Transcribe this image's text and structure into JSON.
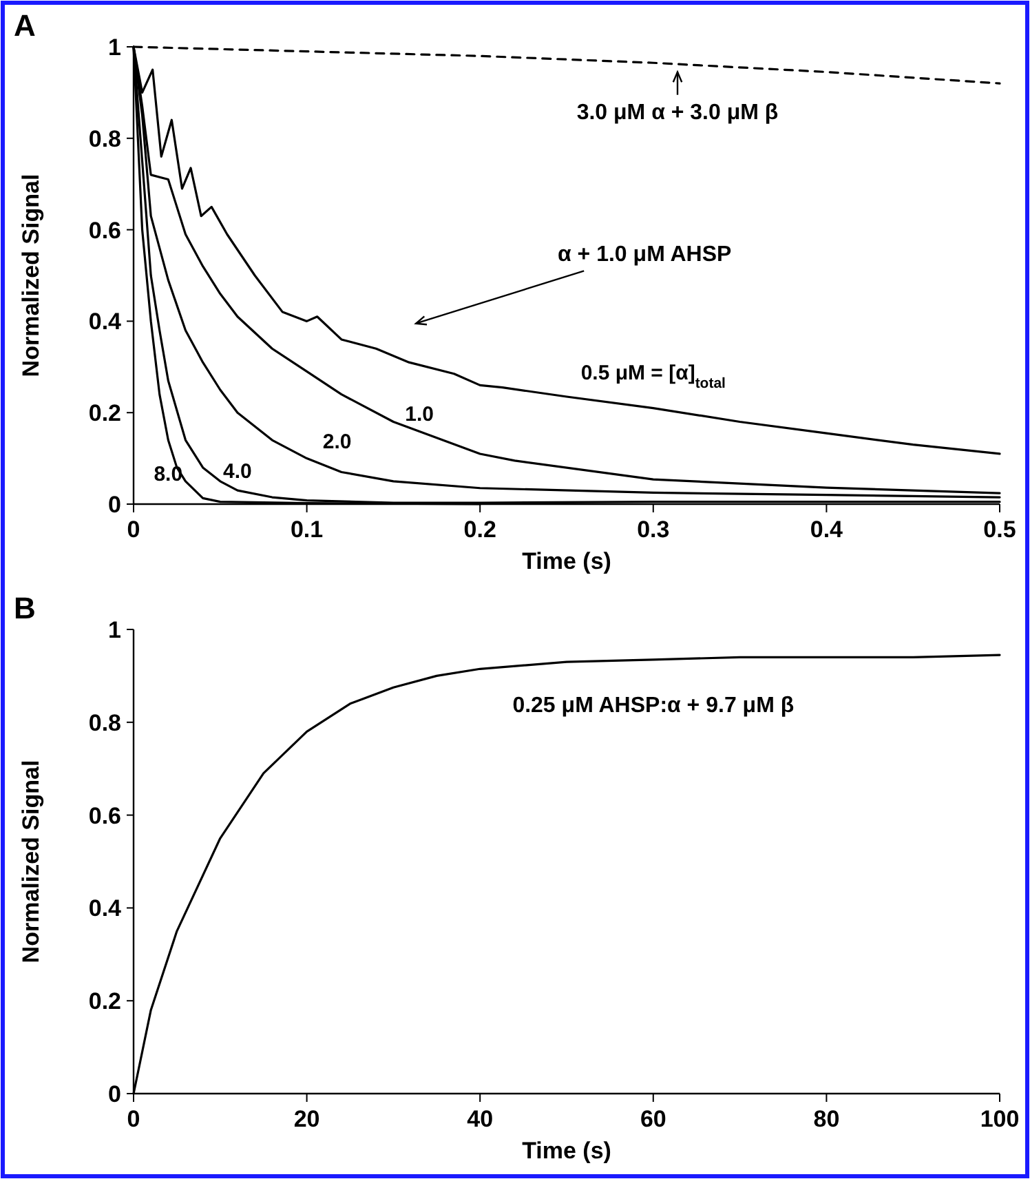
{
  "chart_data": [
    {
      "type": "line",
      "title": "A",
      "xlabel": "Time (s)",
      "ylabel": "Normalized Signal",
      "xlim": [
        0,
        0.5
      ],
      "ylim": [
        0,
        1
      ],
      "xticks": [
        0,
        0.1,
        0.2,
        0.3,
        0.4,
        0.5
      ],
      "yticks": [
        0,
        0.2,
        0.4,
        0.6,
        0.8,
        1
      ],
      "grid": false,
      "marker": "none",
      "series": [
        {
          "color": "#000000",
          "line_style": "dashed",
          "x": [
            0,
            0.1,
            0.2,
            0.3,
            0.4,
            0.5
          ],
          "values": [
            1,
            0.99,
            0.98,
            0.965,
            0.945,
            0.92
          ]
        },
        {
          "name": "0.5 μM = [α]$_{total}$",
          "color": "#000000",
          "line_style": "solid",
          "x": [
            0,
            0.005,
            0.011,
            0.016,
            0.022,
            0.028,
            0.033,
            0.039,
            0.045,
            0.054,
            0.07,
            0.086,
            0.1,
            0.106,
            0.12,
            0.14,
            0.159,
            0.185,
            0.2,
            0.213,
            0.25,
            0.3,
            0.35,
            0.4,
            0.45,
            0.5
          ],
          "values": [
            1,
            0.9,
            0.95,
            0.76,
            0.84,
            0.69,
            0.735,
            0.63,
            0.65,
            0.59,
            0.5,
            0.42,
            0.4,
            0.41,
            0.36,
            0.34,
            0.31,
            0.285,
            0.26,
            0.255,
            0.235,
            0.21,
            0.18,
            0.155,
            0.13,
            0.11
          ]
        },
        {
          "name": "1.0",
          "color": "#000000",
          "line_style": "solid",
          "x": [
            0,
            0.005,
            0.01,
            0.02,
            0.03,
            0.04,
            0.05,
            0.06,
            0.08,
            0.1,
            0.12,
            0.15,
            0.2,
            0.22,
            0.3,
            0.4,
            0.5
          ],
          "values": [
            1,
            0.87,
            0.72,
            0.71,
            0.59,
            0.52,
            0.46,
            0.41,
            0.34,
            0.29,
            0.24,
            0.18,
            0.11,
            0.095,
            0.054,
            0.036,
            0.024
          ]
        },
        {
          "name": "2.0",
          "color": "#000000",
          "line_style": "solid",
          "x": [
            0,
            0.005,
            0.01,
            0.02,
            0.03,
            0.04,
            0.05,
            0.06,
            0.08,
            0.1,
            0.12,
            0.15,
            0.2,
            0.3,
            0.4,
            0.5
          ],
          "values": [
            1,
            0.85,
            0.63,
            0.49,
            0.38,
            0.31,
            0.25,
            0.2,
            0.14,
            0.1,
            0.07,
            0.05,
            0.035,
            0.025,
            0.02,
            0.015
          ]
        },
        {
          "name": "4.0",
          "color": "#000000",
          "line_style": "solid",
          "x": [
            0,
            0.005,
            0.01,
            0.015,
            0.02,
            0.03,
            0.04,
            0.05,
            0.06,
            0.08,
            0.1,
            0.15,
            0.2,
            0.3,
            0.4,
            0.5
          ],
          "values": [
            1,
            0.75,
            0.5,
            0.38,
            0.27,
            0.14,
            0.08,
            0.05,
            0.03,
            0.015,
            0.008,
            0.003,
            0.003,
            0.005,
            0.005,
            0.005
          ]
        },
        {
          "name": "8.0",
          "color": "#000000",
          "line_style": "solid",
          "x": [
            0,
            0.005,
            0.01,
            0.015,
            0.02,
            0.025,
            0.03,
            0.04,
            0.05,
            0.1,
            0.2
          ],
          "values": [
            1,
            0.6,
            0.4,
            0.24,
            0.14,
            0.08,
            0.05,
            0.013,
            0.005,
            0.002,
            0
          ]
        }
      ],
      "annotations": [
        "3.0 μM α + 3.0 μM β",
        "α + 1.0 μM AHSP"
      ]
    },
    {
      "type": "line",
      "title": "B",
      "xlabel": "Time (s)",
      "ylabel": "Normalized Signal",
      "xlim": [
        0,
        100
      ],
      "ylim": [
        0,
        1
      ],
      "xticks": [
        0,
        20,
        40,
        60,
        80,
        100
      ],
      "yticks": [
        0,
        0.2,
        0.4,
        0.6,
        0.8,
        1
      ],
      "grid": false,
      "marker": "none",
      "series": [
        {
          "name": "0.25 μM AHSP:α + 9.7 μM β",
          "color": "#000000",
          "line_style": "solid",
          "x": [
            0,
            2,
            5,
            10,
            15,
            20,
            25,
            30,
            35,
            40,
            50,
            60,
            70,
            80,
            90,
            100
          ],
          "values": [
            0,
            0.18,
            0.35,
            0.55,
            0.69,
            0.78,
            0.84,
            0.875,
            0.9,
            0.915,
            0.93,
            0.935,
            0.94,
            0.94,
            0.94,
            0.945
          ]
        }
      ]
    }
  ]
}
